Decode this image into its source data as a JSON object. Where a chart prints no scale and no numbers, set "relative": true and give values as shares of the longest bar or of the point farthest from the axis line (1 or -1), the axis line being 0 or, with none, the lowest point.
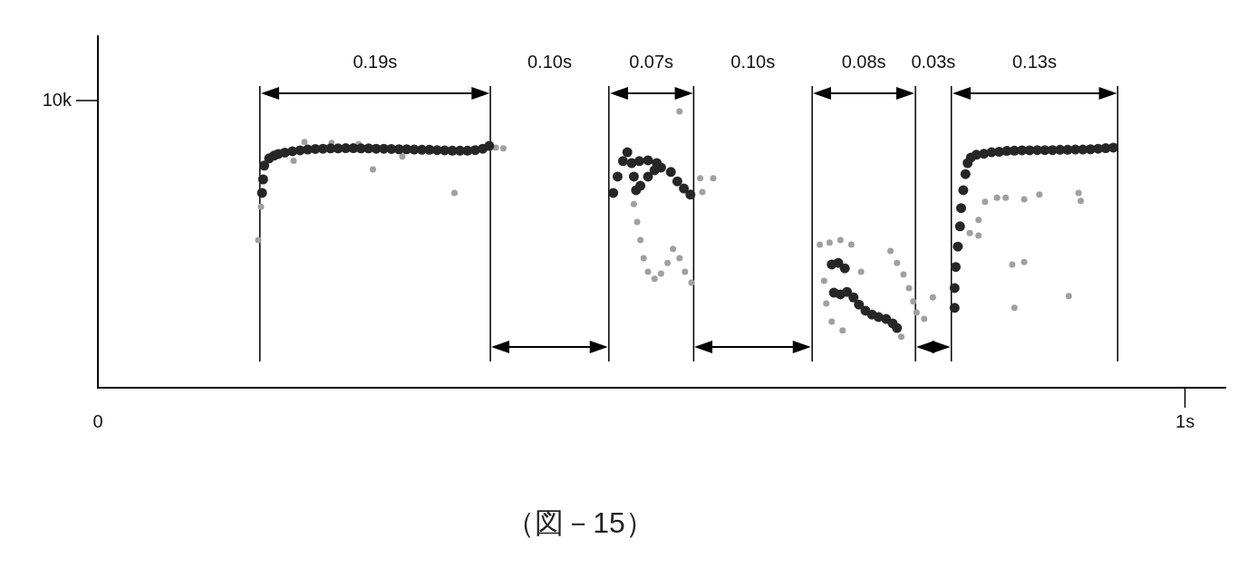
{
  "chart_data": {
    "type": "scatter",
    "relative": true,
    "xlim": [
      0,
      1.037
    ],
    "xticks": [
      0,
      {
        "value": 1,
        "label": "1s"
      }
    ],
    "marker": "circle",
    "series": [
      {
        "color": "#262626",
        "x": [
          0.151,
          0.152,
          0.153,
          0.1575,
          0.162,
          0.166,
          0.172,
          0.179,
          0.186,
          0.193,
          0.2,
          0.207,
          0.214,
          0.221,
          0.228,
          0.235,
          0.242,
          0.249,
          0.256,
          0.263,
          0.27,
          0.277,
          0.284,
          0.291,
          0.298,
          0.305,
          0.312,
          0.319,
          0.326,
          0.333,
          0.34,
          0.347,
          0.354,
          0.36,
          0.474,
          0.478,
          0.483,
          0.487,
          0.491,
          0.493,
          0.495,
          0.498,
          0.506,
          0.514,
          0.499,
          0.506,
          0.512,
          0.518,
          0.527,
          0.533,
          0.539,
          0.545,
          0.677,
          0.683,
          0.689,
          0.695,
          0.7,
          0.706,
          0.712,
          0.718,
          0.725,
          0.731,
          0.735,
          0.675,
          0.681,
          0.687,
          0.788,
          0.788,
          0.789,
          0.791,
          0.793,
          0.794,
          0.796,
          0.798,
          0.8,
          0.803,
          0.808,
          0.815,
          0.822,
          0.829,
          0.836,
          0.843,
          0.85,
          0.857,
          0.864,
          0.871,
          0.878,
          0.885,
          0.892,
          0.899,
          0.906,
          0.913,
          0.92,
          0.927,
          0.934
        ],
        "values": [
          0.705,
          0.754,
          0.804,
          0.83,
          0.84,
          0.846,
          0.851,
          0.856,
          0.859,
          0.862,
          0.864,
          0.865,
          0.866,
          0.866,
          0.867,
          0.867,
          0.866,
          0.866,
          0.865,
          0.865,
          0.864,
          0.863,
          0.863,
          0.862,
          0.861,
          0.861,
          0.86,
          0.859,
          0.858,
          0.858,
          0.858,
          0.86,
          0.865,
          0.875,
          0.705,
          0.764,
          0.82,
          0.852,
          0.813,
          0.764,
          0.715,
          0.82,
          0.823,
          0.813,
          0.731,
          0.764,
          0.787,
          0.797,
          0.781,
          0.747,
          0.721,
          0.699,
          0.344,
          0.338,
          0.347,
          0.327,
          0.301,
          0.279,
          0.265,
          0.256,
          0.249,
          0.233,
          0.216,
          0.446,
          0.452,
          0.432,
          0.289,
          0.361,
          0.437,
          0.511,
          0.584,
          0.65,
          0.715,
          0.773,
          0.813,
          0.833,
          0.843,
          0.847,
          0.852,
          0.854,
          0.857,
          0.858,
          0.859,
          0.859,
          0.86,
          0.86,
          0.86,
          0.861,
          0.861,
          0.862,
          0.862,
          0.863,
          0.865,
          0.867,
          0.869
        ]
      },
      {
        "color": "#a0a0a0",
        "x": [
          0.1475,
          0.253,
          0.328,
          0.366,
          0.373,
          0.19,
          0.215,
          0.24,
          0.18,
          0.28,
          0.15,
          0.493,
          0.496,
          0.499,
          0.502,
          0.506,
          0.512,
          0.518,
          0.524,
          0.529,
          0.535,
          0.54,
          0.546,
          0.554,
          0.566,
          0.556,
          0.535,
          0.729,
          0.735,
          0.741,
          0.746,
          0.75,
          0.753,
          0.664,
          0.673,
          0.683,
          0.693,
          0.668,
          0.67,
          0.675,
          0.685,
          0.739,
          0.76,
          0.768,
          0.702,
          0.816,
          0.827,
          0.835,
          0.852,
          0.866,
          0.902,
          0.904,
          0.81,
          0.802,
          0.81,
          0.841,
          0.852,
          0.893,
          0.843
        ],
        "values": [
          0.534,
          0.79,
          0.705,
          0.869,
          0.866,
          0.889,
          0.886,
          0.881,
          0.821,
          0.837,
          0.655,
          0.665,
          0.6,
          0.534,
          0.469,
          0.42,
          0.394,
          0.413,
          0.452,
          0.502,
          0.469,
          0.42,
          0.38,
          0.758,
          0.758,
          0.708,
          1,
          0.495,
          0.452,
          0.41,
          0.361,
          0.312,
          0.272,
          0.518,
          0.525,
          0.534,
          0.518,
          0.387,
          0.305,
          0.239,
          0.207,
          0.184,
          0.249,
          0.327,
          0.42,
          0.673,
          0.688,
          0.688,
          0.682,
          0.699,
          0.705,
          0.676,
          0.607,
          0.56,
          0.551,
          0.446,
          0.455,
          0.332,
          0.289
        ]
      }
    ],
    "ref_lines": [
      {
        "axis": "x",
        "value": 0.149
      },
      {
        "axis": "x",
        "value": 0.361
      },
      {
        "axis": "x",
        "value": 0.47
      },
      {
        "axis": "x",
        "value": 0.548
      },
      {
        "axis": "x",
        "value": 0.657
      },
      {
        "axis": "x",
        "value": 0.752
      },
      {
        "axis": "x",
        "value": 0.785
      },
      {
        "axis": "x",
        "value": 0.938
      }
    ],
    "annotations": [
      "0.19s",
      "0.10s",
      "0.07s",
      "0.10s",
      "0.08s",
      "0.03s",
      "0.13s",
      "10k",
      "（図－15）"
    ]
  }
}
